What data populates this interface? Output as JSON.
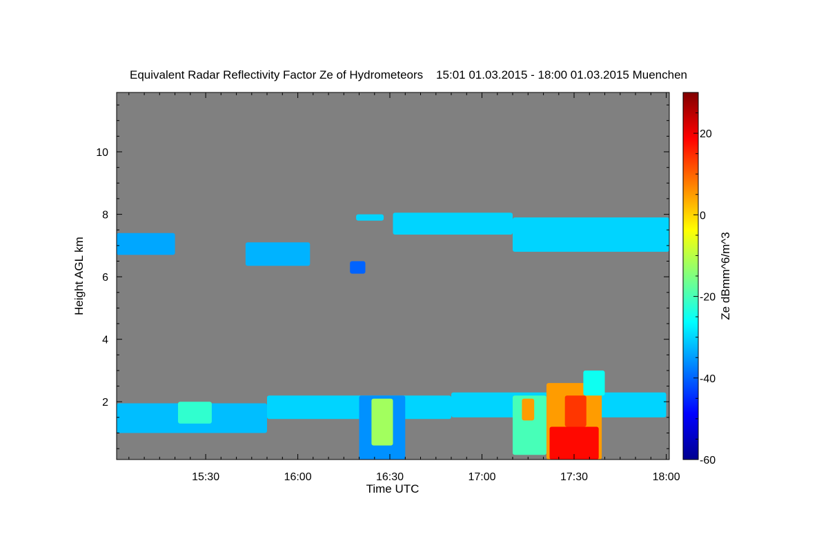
{
  "chart_data": {
    "type": "heatmap",
    "title": "Equivalent Radar Reflectivity Factor Ze of Hydrometeors    15:01 01.03.2015 - 18:00 01.03.2015 Muenchen",
    "xlabel": "Time UTC",
    "ylabel": "Height AGL km",
    "x_unit": "minutes UTC",
    "xlim": [
      901,
      1081
    ],
    "ylim": [
      0.15,
      11.9
    ],
    "x_ticks": [
      {
        "value": 930,
        "label": "15:30"
      },
      {
        "value": 960,
        "label": "16:00"
      },
      {
        "value": 990,
        "label": "16:30"
      },
      {
        "value": 1020,
        "label": "17:00"
      },
      {
        "value": 1050,
        "label": "17:30"
      },
      {
        "value": 1080,
        "label": "18:00"
      }
    ],
    "y_ticks": [
      2,
      4,
      6,
      8,
      10
    ],
    "colorbar": {
      "label": "Ze dBmm^6/m^3",
      "range": [
        -60,
        30
      ],
      "ticks": [
        -60,
        -40,
        -20,
        0,
        20
      ]
    },
    "background_color": "#808080",
    "regions": [
      {
        "t0": 901,
        "t1": 920,
        "z0": 6.7,
        "z1": 7.4,
        "ze": -34
      },
      {
        "t0": 943,
        "t1": 964,
        "z0": 6.35,
        "z1": 7.1,
        "ze": -33
      },
      {
        "t0": 977,
        "t1": 982,
        "z0": 6.1,
        "z1": 6.5,
        "ze": -40
      },
      {
        "t0": 979,
        "t1": 988,
        "z0": 7.8,
        "z1": 8.0,
        "ze": -30
      },
      {
        "t0": 991,
        "t1": 1030,
        "z0": 7.35,
        "z1": 8.05,
        "ze": -30
      },
      {
        "t0": 1030,
        "t1": 1081,
        "z0": 6.8,
        "z1": 7.9,
        "ze": -30
      },
      {
        "t0": 901,
        "t1": 950,
        "z0": 1.0,
        "z1": 1.95,
        "ze": -32
      },
      {
        "t0": 950,
        "t1": 1010,
        "z0": 1.45,
        "z1": 2.2,
        "ze": -30
      },
      {
        "t0": 1010,
        "t1": 1080,
        "z0": 1.5,
        "z1": 2.3,
        "ze": -30
      },
      {
        "t0": 921,
        "t1": 932,
        "z0": 1.3,
        "z1": 2.0,
        "ze": -22
      },
      {
        "t0": 980,
        "t1": 995,
        "z0": 0.15,
        "z1": 2.2,
        "ze": -36
      },
      {
        "t0": 984,
        "t1": 991,
        "z0": 0.6,
        "z1": 2.1,
        "ze": -12
      },
      {
        "t0": 1030,
        "t1": 1041,
        "z0": 0.3,
        "z1": 2.2,
        "ze": -20
      },
      {
        "t0": 1033,
        "t1": 1037,
        "z0": 1.4,
        "z1": 2.1,
        "ze": 5
      },
      {
        "t0": 1041,
        "t1": 1059,
        "z0": 0.15,
        "z1": 2.6,
        "ze": 5
      },
      {
        "t0": 1042,
        "t1": 1058,
        "z0": 0.15,
        "z1": 1.2,
        "ze": 18
      },
      {
        "t0": 1047,
        "t1": 1054,
        "z0": 1.2,
        "z1": 2.2,
        "ze": 14
      },
      {
        "t0": 1053,
        "t1": 1060,
        "z0": 2.2,
        "z1": 3.0,
        "ze": -25
      }
    ]
  }
}
